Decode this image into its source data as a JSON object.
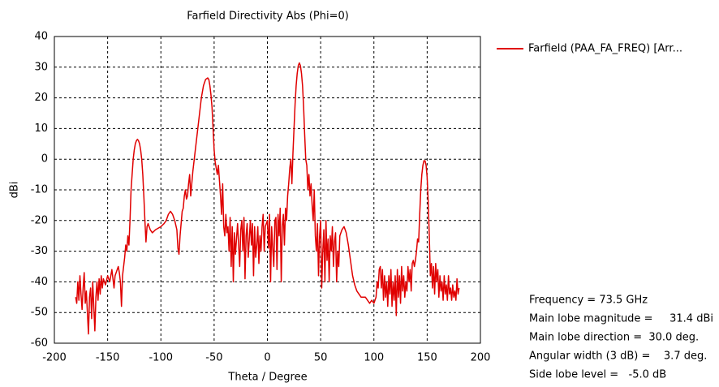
{
  "chart_data": {
    "type": "line",
    "title": "Farfield Directivity Abs (Phi=0)",
    "xlabel": "Theta / Degree",
    "ylabel": "dBi",
    "xlim": [
      -200,
      200
    ],
    "ylim": [
      -60,
      40
    ],
    "xticks": [
      -200,
      -150,
      -100,
      -50,
      0,
      50,
      100,
      150,
      200
    ],
    "yticks": [
      -60,
      -50,
      -40,
      -30,
      -20,
      -10,
      0,
      10,
      20,
      30,
      40
    ],
    "grid": true,
    "legend": "top-right",
    "annotations": [
      "Frequency = 73.5 GHz",
      "Main lobe magnitude =     31.4 dBi",
      "Main lobe direction =  30.0 deg.",
      "Angular width (3 dB) =    3.7 deg.",
      "Side lobe level =   -5.0 dB"
    ],
    "x": [
      -180,
      -179,
      -178,
      -177,
      -176,
      -175,
      -174,
      -173,
      -172,
      -171,
      -170,
      -169,
      -168,
      -167,
      -166,
      -165,
      -164,
      -163,
      -162,
      -161,
      -160,
      -159,
      -158,
      -157,
      -156,
      -155,
      -154,
      -152,
      -150,
      -148,
      -146,
      -144,
      -143,
      -141,
      -140,
      -139,
      -138,
      -137,
      -136,
      -134,
      -133,
      -132,
      -131,
      -130,
      -129,
      -128,
      -127,
      -126,
      -125,
      -124,
      -123,
      -122,
      -121,
      -120,
      -119,
      -118,
      -117,
      -116,
      -115,
      -114,
      -113,
      -112,
      -110,
      -108,
      -105,
      -100,
      -97,
      -95,
      -93,
      -91,
      -89,
      -87,
      -85,
      -84,
      -83,
      -82,
      -80,
      -79,
      -78,
      -77,
      -76,
      -75,
      -74,
      -73,
      -72,
      -71,
      -70,
      -68,
      -66,
      -64,
      -62,
      -60,
      -58,
      -56,
      -55,
      -54,
      -53,
      -52,
      -51,
      -50,
      -49,
      -48,
      -47,
      -46,
      -45,
      -44,
      -43,
      -42,
      -41,
      -40,
      -39,
      -38,
      -37,
      -36,
      -35,
      -34,
      -33,
      -32,
      -31,
      -30,
      -28,
      -26,
      -25,
      -24,
      -23,
      -22,
      -21,
      -20,
      -19,
      -18,
      -16,
      -15,
      -14,
      -13,
      -12,
      -11,
      -10,
      -9,
      -8,
      -7,
      -6,
      -5,
      -4,
      -3,
      -2,
      0,
      1,
      2,
      3,
      4,
      5,
      6,
      7,
      8,
      9,
      10,
      11,
      12,
      13,
      14,
      15,
      16,
      17,
      18,
      19,
      20,
      21,
      22,
      23,
      24,
      25,
      26,
      27,
      28,
      29,
      30,
      31,
      32,
      33,
      34,
      35,
      36,
      37,
      38,
      39,
      40,
      41,
      42,
      43,
      44,
      45,
      46,
      47,
      48,
      49,
      50,
      51,
      52,
      53,
      54,
      55,
      56,
      57,
      58,
      59,
      60,
      61,
      62,
      63,
      64,
      65,
      66,
      67,
      68,
      70,
      72,
      74,
      76,
      78,
      80,
      82,
      84,
      86,
      88,
      90,
      92,
      94,
      96,
      98,
      100,
      102,
      103,
      104,
      105,
      106,
      107,
      108,
      109,
      110,
      111,
      112,
      113,
      114,
      115,
      116,
      117,
      118,
      119,
      120,
      121,
      122,
      123,
      124,
      125,
      126,
      127,
      128,
      129,
      130,
      131,
      132,
      133,
      134,
      135,
      136,
      137,
      138,
      139,
      140,
      141,
      142,
      143,
      144,
      145,
      146,
      147,
      148,
      149,
      150,
      151,
      152,
      153,
      154,
      155,
      156,
      157,
      158,
      159,
      160,
      161,
      162,
      163,
      164,
      165,
      166,
      167,
      168,
      169,
      170,
      171,
      172,
      173,
      174,
      175,
      176,
      177,
      178,
      179,
      180
    ],
    "series": [
      {
        "name": "Farfield (PAA_FA_FREQ) [Arr...",
        "color": "#e00000",
        "values": [
          -45,
          -47,
          -40,
          -46,
          -38,
          -44,
          -49,
          -42,
          -37,
          -47,
          -43,
          -50,
          -57,
          -45,
          -42,
          -52,
          -40,
          -48,
          -56,
          -45,
          -40,
          -46,
          -39,
          -44,
          -38,
          -42,
          -39,
          -41,
          -38,
          -40,
          -36,
          -42,
          -38,
          -36,
          -35,
          -37,
          -40,
          -48,
          -38,
          -32,
          -28,
          -30,
          -25,
          -28,
          -20,
          -10,
          -5,
          0,
          3,
          5,
          6,
          6.5,
          6,
          5,
          3,
          0,
          -5,
          -12,
          -20,
          -27,
          -22,
          -21,
          -23,
          -24,
          -23,
          -22,
          -21,
          -20,
          -18,
          -17,
          -18,
          -20,
          -23,
          -29,
          -31,
          -25,
          -17,
          -16,
          -12,
          -10,
          -13,
          -12,
          -8,
          -5,
          -12,
          -8,
          -4,
          2,
          8,
          14,
          20,
          24,
          26,
          26.5,
          26,
          24,
          21,
          17,
          10,
          3,
          -1,
          -3,
          -5,
          -2,
          -7,
          -12,
          -18,
          -8,
          -22,
          -25,
          -18,
          -24,
          -22,
          -30,
          -19,
          -35,
          -22,
          -40,
          -24,
          -31,
          -21,
          -35,
          -23,
          -20,
          -30,
          -19,
          -39,
          -25,
          -21,
          -32,
          -20,
          -28,
          -21,
          -38,
          -22,
          -32,
          -28,
          -22,
          -34,
          -25,
          -30,
          -22,
          -18,
          -30,
          -22,
          -20,
          -29,
          -18,
          -40,
          -22,
          -29,
          -35,
          -20,
          -19,
          -36,
          -18,
          -25,
          -16,
          -40,
          -22,
          -18,
          -28,
          -16,
          -20,
          -12,
          -8,
          -3,
          0,
          -8,
          2,
          10,
          18,
          24,
          28,
          30.5,
          31.4,
          30.5,
          28,
          24,
          17,
          8,
          0,
          -2,
          -10,
          -5,
          -12,
          -8,
          -15,
          -20,
          -10,
          -25,
          -30,
          -21,
          -38,
          -25,
          -20,
          -42,
          -30,
          -23,
          -40,
          -20,
          -33,
          -26,
          -40,
          -25,
          -30,
          -22,
          -35,
          -27,
          -24,
          -40,
          -30,
          -35,
          -25,
          -23,
          -22,
          -24,
          -28,
          -33,
          -38,
          -41,
          -43,
          -44,
          -45,
          -45,
          -45,
          -46,
          -47,
          -46,
          -47,
          -45,
          -40,
          -42,
          -36,
          -35,
          -42,
          -36,
          -46,
          -38,
          -45,
          -40,
          -48,
          -38,
          -44,
          -36,
          -48,
          -40,
          -46,
          -38,
          -51,
          -36,
          -45,
          -38,
          -47,
          -35,
          -43,
          -38,
          -45,
          -40,
          -43,
          -35,
          -40,
          -36,
          -43,
          -34,
          -33,
          -35,
          -33,
          -30,
          -26,
          -27,
          -18,
          -10,
          -5,
          -2,
          -0.5,
          -0.5,
          -2,
          -6,
          -14,
          -25,
          -38,
          -34,
          -42,
          -35,
          -44,
          -34,
          -40,
          -36,
          -45,
          -38,
          -43,
          -40,
          -46,
          -38,
          -44,
          -41,
          -46,
          -38,
          -44,
          -42,
          -46,
          -41,
          -45,
          -43,
          -46,
          -39,
          -44,
          -42
        ]
      }
    ]
  }
}
